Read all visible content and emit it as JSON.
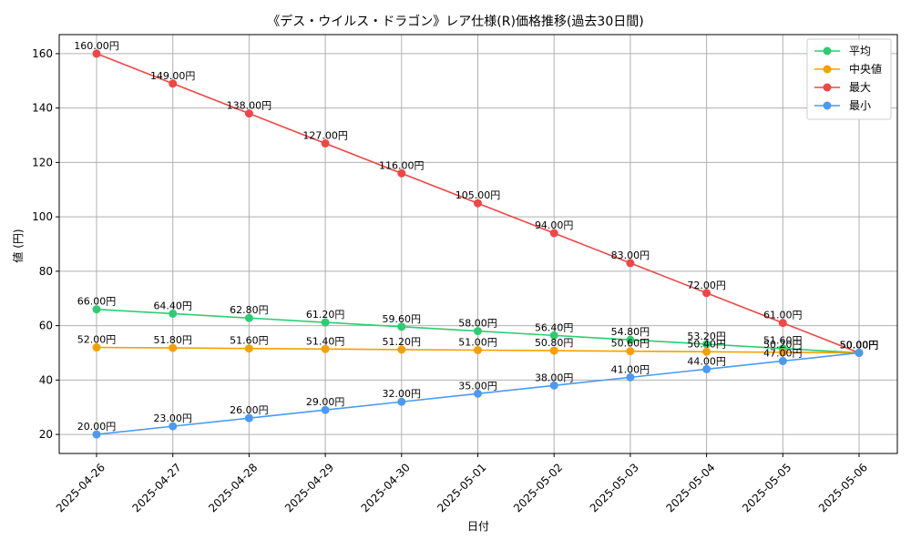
{
  "chart_data": {
    "type": "line",
    "title": "《デス・ウイルス・ドラゴン》レア仕様(R)価格推移(過去30日間)",
    "xlabel": "日付",
    "ylabel": "値 (円)",
    "categories": [
      "2025-04-26",
      "2025-04-27",
      "2025-04-28",
      "2025-04-29",
      "2025-04-30",
      "2025-05-01",
      "2025-05-02",
      "2025-05-03",
      "2025-05-04",
      "2025-05-05",
      "2025-05-06"
    ],
    "ylim": [
      13,
      167
    ],
    "yticks": [
      20,
      40,
      60,
      80,
      100,
      120,
      140,
      160
    ],
    "grid": true,
    "legend_position": "top-right",
    "label_suffix": "円",
    "series": [
      {
        "name": "平均",
        "color": "#2ecc71",
        "values": [
          66.0,
          64.4,
          62.8,
          61.2,
          59.6,
          58.0,
          56.4,
          54.8,
          53.2,
          51.6,
          50.0
        ]
      },
      {
        "name": "中央値",
        "color": "#f5a000",
        "values": [
          52.0,
          51.8,
          51.6,
          51.4,
          51.2,
          51.0,
          50.8,
          50.6,
          50.4,
          50.2,
          50.0
        ]
      },
      {
        "name": "最大",
        "color": "#f04646",
        "values": [
          160.0,
          149.0,
          138.0,
          127.0,
          116.0,
          105.0,
          94.0,
          83.0,
          72.0,
          61.0,
          50.0
        ]
      },
      {
        "name": "最小",
        "color": "#4a9af5",
        "values": [
          20.0,
          23.0,
          26.0,
          29.0,
          32.0,
          35.0,
          38.0,
          41.0,
          44.0,
          47.0,
          50.0
        ]
      }
    ]
  }
}
